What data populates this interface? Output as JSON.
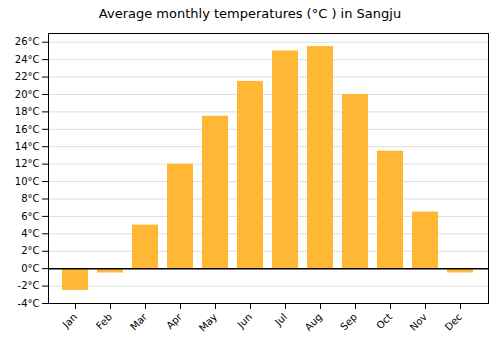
{
  "chart_data": {
    "type": "bar",
    "title": "Average monthly temperatures (°C ) in Sangju",
    "categories": [
      "Jan",
      "Feb",
      "Mar",
      "Apr",
      "May",
      "Jun",
      "Jul",
      "Aug",
      "Sep",
      "Oct",
      "Nov",
      "Dec"
    ],
    "values": [
      -2.5,
      -0.5,
      5.0,
      12.0,
      17.5,
      21.5,
      25.0,
      25.5,
      20.0,
      13.5,
      6.5,
      -0.5
    ],
    "color": "#FFB836",
    "ylim": [
      -4,
      27
    ],
    "yticks": [
      {
        "value": -4,
        "label": "-4°C"
      },
      {
        "value": -2,
        "label": "-2°C"
      },
      {
        "value": 0,
        "label": "0°C"
      },
      {
        "value": 2,
        "label": "2°C"
      },
      {
        "value": 4,
        "label": "4°C"
      },
      {
        "value": 6,
        "label": "6°C"
      },
      {
        "value": 8,
        "label": "8°C"
      },
      {
        "value": 10,
        "label": "10°C"
      },
      {
        "value": 12,
        "label": "12°C"
      },
      {
        "value": 14,
        "label": "14°C"
      },
      {
        "value": 16,
        "label": "16°C"
      },
      {
        "value": 18,
        "label": "18°C"
      },
      {
        "value": 20,
        "label": "20°C"
      },
      {
        "value": 22,
        "label": "22°C"
      },
      {
        "value": 24,
        "label": "24°C"
      },
      {
        "value": 26,
        "label": "26°C"
      }
    ],
    "grid": true
  }
}
